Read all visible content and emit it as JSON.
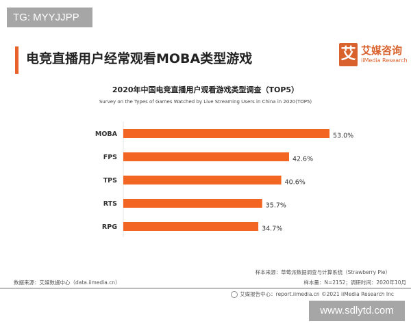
{
  "overlay_tag": "TG: MYYJJPP",
  "header": {
    "title": "电竞直播用户经常观看MOBA类型游戏",
    "logo_mark": "艾",
    "logo_cn": "艾媒咨询",
    "logo_en": "iiMedia Research"
  },
  "chart_data": {
    "type": "bar",
    "orientation": "horizontal",
    "title": "2020年中国电竞直播用户观看游戏类型调查（TOP5）",
    "subtitle": "Survey on the Types of Games Watched by Live Streaming Users  in China in 2020(TOP5)",
    "categories": [
      "MOBA",
      "FPS",
      "TPS",
      "RTS",
      "RPG"
    ],
    "values": [
      53.0,
      42.6,
      40.6,
      35.7,
      34.7
    ],
    "data_labels": [
      "53.0%",
      "42.6%",
      "40.6%",
      "35.7%",
      "34.7%"
    ],
    "xlim": [
      0,
      60
    ],
    "grid": false,
    "bar_color": "#f26522"
  },
  "footer": {
    "data_source": "数据来源：艾媒数据中心（data.iimedia.cn）",
    "sample_source": "样本来源：草莓派数据调查与计算系统（Strawberry Pie）",
    "sample_info": "样本量：N=2152；调研时间：2020年10月",
    "report_center": "艾媒报告中心：report.iimedia.cn ©2021  iiMedia Research  Inc"
  },
  "watermark": "www.sdlytd.com"
}
